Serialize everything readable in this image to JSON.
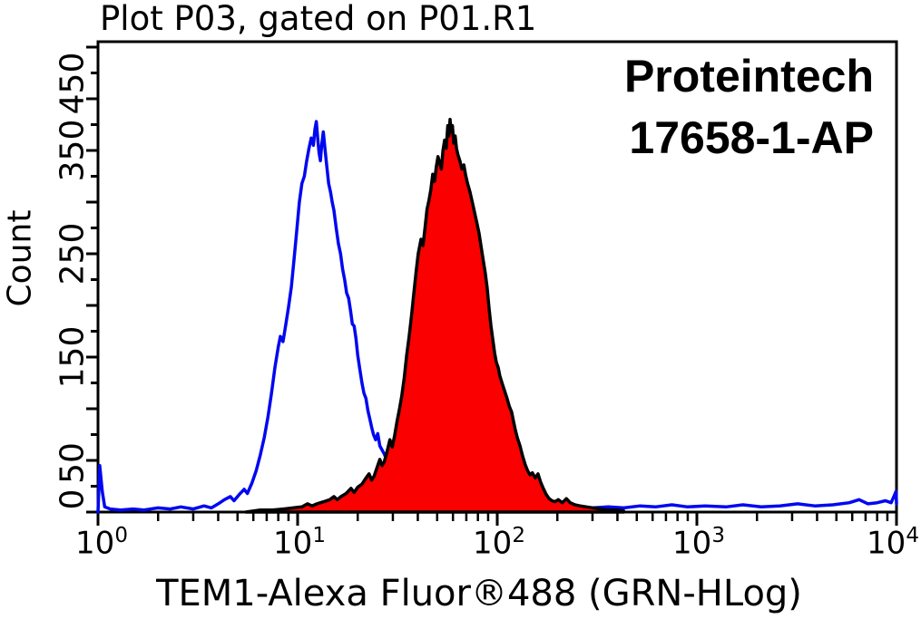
{
  "plot": {
    "title": "Plot P03, gated on P01.R1",
    "annotation_line1": "Proteintech",
    "annotation_line2": "17658-1-AP"
  },
  "y_axis": {
    "label": "Count",
    "tick_labels": [
      "450",
      "350",
      "250",
      "150",
      "50",
      "0"
    ]
  },
  "x_axis": {
    "label": "TEM1-Alexa Fluor®488 (GRN-HLog)",
    "tick_labels": [
      {
        "base": "10",
        "exp": "0"
      },
      {
        "base": "10",
        "exp": "1"
      },
      {
        "base": "10",
        "exp": "2"
      },
      {
        "base": "10",
        "exp": "3"
      },
      {
        "base": "10",
        "exp": "4"
      }
    ]
  },
  "colors": {
    "background": "#ffffff",
    "axis": "#000000",
    "control_line": "#0008f0",
    "sample_fill": "#fa0000",
    "sample_outline": "#000000"
  },
  "chart_data": {
    "type": "area",
    "subtype": "flow-cytometry-histogram-overlay",
    "title": "Plot P03, gated on P01.R1",
    "xlabel": "TEM1-Alexa Fluor®488 (GRN-HLog)",
    "ylabel": "Count",
    "x_scale": "log10",
    "xlim": [
      1,
      10000
    ],
    "ylim": [
      0,
      450
    ],
    "y_major_tick_step": 50,
    "y_minor_tick_step": 25,
    "y_labeled_ticks": [
      0,
      50,
      150,
      250,
      350,
      450
    ],
    "x_major_ticks": [
      1,
      10,
      100,
      1000,
      10000
    ],
    "grid": false,
    "legend": "none",
    "annotations": [
      "Proteintech",
      "17658-1-AP"
    ],
    "series": [
      {
        "name": "control-blue-outline",
        "style": "open-outline",
        "color": "#0008f0",
        "fill": false,
        "peak": {
          "x": 12.4,
          "count": 378
        },
        "points": [
          [
            1,
            0
          ],
          [
            1.02,
            45
          ],
          [
            1.05,
            20
          ],
          [
            1.08,
            5
          ],
          [
            1.15,
            3
          ],
          [
            1.3,
            2
          ],
          [
            1.5,
            3
          ],
          [
            1.7,
            2
          ],
          [
            2,
            4
          ],
          [
            2.3,
            3
          ],
          [
            2.6,
            5
          ],
          [
            3,
            3
          ],
          [
            3.4,
            6
          ],
          [
            3.7,
            4
          ],
          [
            4,
            8
          ],
          [
            4.3,
            12
          ],
          [
            4.6,
            15
          ],
          [
            4.8,
            11
          ],
          [
            5.1,
            17
          ],
          [
            5.4,
            22
          ],
          [
            5.6,
            18
          ],
          [
            5.9,
            28
          ],
          [
            6.2,
            40
          ],
          [
            6.5,
            55
          ],
          [
            6.8,
            72
          ],
          [
            7.1,
            92
          ],
          [
            7.4,
            115
          ],
          [
            7.7,
            140
          ],
          [
            8,
            160
          ],
          [
            8.2,
            170
          ],
          [
            8.45,
            165
          ],
          [
            8.7,
            180
          ],
          [
            9,
            198
          ],
          [
            9.3,
            218
          ],
          [
            9.6,
            245
          ],
          [
            9.9,
            272
          ],
          [
            10.2,
            300
          ],
          [
            10.5,
            318
          ],
          [
            10.8,
            325
          ],
          [
            11.1,
            340
          ],
          [
            11.4,
            352
          ],
          [
            11.7,
            362
          ],
          [
            12,
            355
          ],
          [
            12.2,
            370
          ],
          [
            12.4,
            378
          ],
          [
            12.6,
            362
          ],
          [
            12.8,
            348
          ],
          [
            13,
            340
          ],
          [
            13.2,
            355
          ],
          [
            13.45,
            368
          ],
          [
            13.7,
            352
          ],
          [
            14,
            335
          ],
          [
            14.3,
            318
          ],
          [
            14.6,
            310
          ],
          [
            14.9,
            300
          ],
          [
            15.2,
            292
          ],
          [
            15.6,
            275
          ],
          [
            16,
            260
          ],
          [
            16.4,
            250
          ],
          [
            16.8,
            235
          ],
          [
            17.2,
            225
          ],
          [
            17.6,
            212
          ],
          [
            18,
            207
          ],
          [
            18.4,
            195
          ],
          [
            18.8,
            182
          ],
          [
            19.2,
            180
          ],
          [
            19.6,
            168
          ],
          [
            20,
            152
          ],
          [
            20.5,
            138
          ],
          [
            21,
            125
          ],
          [
            21.5,
            115
          ],
          [
            22,
            110
          ],
          [
            22.5,
            98
          ],
          [
            23,
            90
          ],
          [
            23.5,
            82
          ],
          [
            24,
            75
          ],
          [
            24.6,
            70
          ],
          [
            25.2,
            76
          ],
          [
            25.8,
            64
          ],
          [
            26.5,
            60
          ],
          [
            27.2,
            56
          ],
          [
            28,
            50
          ],
          [
            29,
            44
          ],
          [
            30,
            40
          ],
          [
            32,
            30
          ],
          [
            34,
            22
          ],
          [
            36,
            16
          ],
          [
            39,
            11
          ],
          [
            43,
            8
          ],
          [
            48,
            6
          ],
          [
            55,
            5
          ],
          [
            65,
            4
          ],
          [
            80,
            3
          ],
          [
            100,
            3
          ],
          [
            130,
            4
          ],
          [
            160,
            3
          ],
          [
            200,
            4
          ],
          [
            250,
            3
          ],
          [
            300,
            4
          ],
          [
            360,
            5
          ],
          [
            430,
            4
          ],
          [
            520,
            6
          ],
          [
            620,
            5
          ],
          [
            750,
            7
          ],
          [
            900,
            5
          ],
          [
            1100,
            6
          ],
          [
            1400,
            5
          ],
          [
            1700,
            7
          ],
          [
            2100,
            5
          ],
          [
            2600,
            6
          ],
          [
            3200,
            8
          ],
          [
            3900,
            6
          ],
          [
            4800,
            7
          ],
          [
            5800,
            9
          ],
          [
            6500,
            12
          ],
          [
            7200,
            8
          ],
          [
            8000,
            9
          ],
          [
            8800,
            11
          ],
          [
            9400,
            9
          ],
          [
            9800,
            17
          ],
          [
            9950,
            20
          ],
          [
            10000,
            8
          ]
        ]
      },
      {
        "name": "tem1-red-filled",
        "style": "filled",
        "fill": true,
        "fill_color": "#fa0000",
        "outline_color": "#000000",
        "peak": {
          "x": 58,
          "count": 380
        },
        "points": [
          [
            5.5,
            0
          ],
          [
            6.5,
            2
          ],
          [
            7.5,
            2
          ],
          [
            8.5,
            3
          ],
          [
            9.5,
            4
          ],
          [
            10.5,
            5
          ],
          [
            11.2,
            8
          ],
          [
            11.8,
            6
          ],
          [
            12.5,
            8
          ],
          [
            13.5,
            10
          ],
          [
            14.5,
            12
          ],
          [
            15.2,
            15
          ],
          [
            15.8,
            12
          ],
          [
            16.5,
            15
          ],
          [
            17.5,
            18
          ],
          [
            18.5,
            23
          ],
          [
            19.2,
            19
          ],
          [
            20,
            24
          ],
          [
            21,
            27
          ],
          [
            22,
            33
          ],
          [
            22.8,
            37
          ],
          [
            23.5,
            31
          ],
          [
            24.2,
            35
          ],
          [
            25,
            43
          ],
          [
            25.8,
            51
          ],
          [
            26.5,
            45
          ],
          [
            27.2,
            49
          ],
          [
            28,
            58
          ],
          [
            29,
            70
          ],
          [
            29.8,
            63
          ],
          [
            30.6,
            74
          ],
          [
            31.5,
            88
          ],
          [
            32.4,
            100
          ],
          [
            33.2,
            112
          ],
          [
            34.2,
            130
          ],
          [
            35.2,
            152
          ],
          [
            36.2,
            170
          ],
          [
            37.2,
            190
          ],
          [
            38.2,
            212
          ],
          [
            39.2,
            232
          ],
          [
            40.2,
            250
          ],
          [
            41.5,
            264
          ],
          [
            42.5,
            258
          ],
          [
            43.5,
            276
          ],
          [
            44.5,
            293
          ],
          [
            45.5,
            302
          ],
          [
            46.5,
            312
          ],
          [
            47.5,
            327
          ],
          [
            48.5,
            320
          ],
          [
            49.5,
            334
          ],
          [
            50.5,
            344
          ],
          [
            51.5,
            338
          ],
          [
            52.5,
            332
          ],
          [
            53.5,
            350
          ],
          [
            54.5,
            360
          ],
          [
            55.5,
            352
          ],
          [
            56.5,
            374
          ],
          [
            57.2,
            364
          ],
          [
            58,
            380
          ],
          [
            58.8,
            368
          ],
          [
            59.6,
            374
          ],
          [
            60.5,
            357
          ],
          [
            61.5,
            364
          ],
          [
            62.5,
            352
          ],
          [
            63.5,
            346
          ],
          [
            65,
            340
          ],
          [
            66.5,
            332
          ],
          [
            68,
            336
          ],
          [
            69.5,
            326
          ],
          [
            71,
            318
          ],
          [
            73,
            310
          ],
          [
            75,
            300
          ],
          [
            77,
            290
          ],
          [
            79,
            280
          ],
          [
            81,
            270
          ],
          [
            83,
            257
          ],
          [
            85,
            244
          ],
          [
            87,
            232
          ],
          [
            89,
            217
          ],
          [
            91,
            197
          ],
          [
            93,
            180
          ],
          [
            95,
            167
          ],
          [
            97,
            154
          ],
          [
            99,
            145
          ],
          [
            101,
            140
          ],
          [
            103,
            132
          ],
          [
            106,
            124
          ],
          [
            109,
            117
          ],
          [
            112,
            110
          ],
          [
            115,
            102
          ],
          [
            118,
            97
          ],
          [
            120,
            90
          ],
          [
            123,
            80
          ],
          [
            126,
            72
          ],
          [
            130,
            64
          ],
          [
            134,
            54
          ],
          [
            138,
            46
          ],
          [
            142,
            40
          ],
          [
            146,
            36
          ],
          [
            150,
            38
          ],
          [
            155,
            33
          ],
          [
            160,
            37
          ],
          [
            165,
            29
          ],
          [
            170,
            23
          ],
          [
            176,
            17
          ],
          [
            182,
            13
          ],
          [
            188,
            11
          ],
          [
            195,
            10
          ],
          [
            202,
            12
          ],
          [
            212,
            9
          ],
          [
            222,
            13
          ],
          [
            232,
            9
          ],
          [
            245,
            7
          ],
          [
            260,
            6
          ],
          [
            280,
            5
          ],
          [
            300,
            4
          ],
          [
            330,
            3
          ],
          [
            360,
            2
          ],
          [
            400,
            2
          ],
          [
            430,
            1
          ]
        ]
      }
    ]
  }
}
